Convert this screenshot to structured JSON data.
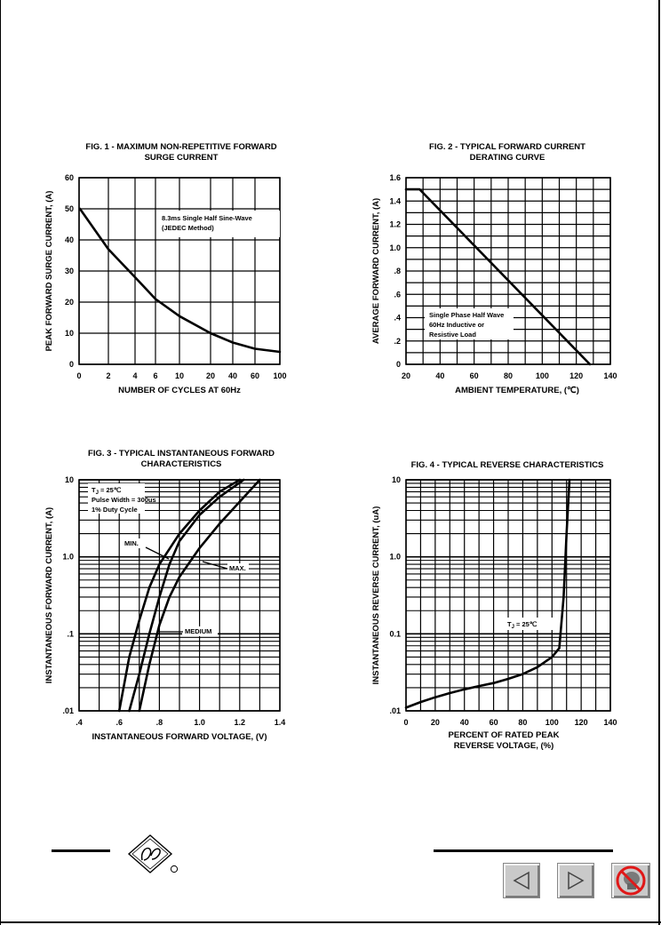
{
  "chart_data": [
    {
      "type": "line",
      "title": "FIG. 1 - MAXIMUM NON-REPETITIVE FORWARD SURGE CURRENT",
      "title_lines": [
        "FIG. 1 - MAXIMUM NON-REPETITIVE FORWARD",
        "SURGE CURRENT"
      ],
      "xlabel": "NUMBER OF CYCLES AT 60Hz",
      "ylabel": "PEAK FORWARD SURGE CURRENT, (A)",
      "x_ticks": [
        "0",
        "2",
        "4",
        "6",
        "10",
        "20",
        "40",
        "60",
        "100"
      ],
      "y_ticks": [
        "0",
        "10",
        "20",
        "30",
        "40",
        "50",
        "60"
      ],
      "ylim": [
        0,
        60
      ],
      "grid": true,
      "annotation_lines": [
        "8.3ms Single Half Sine-Wave",
        "(JEDEC Method)"
      ],
      "series": [
        {
          "x": [
            1,
            2,
            4,
            6,
            10,
            20,
            40,
            60,
            100
          ],
          "y": [
            50,
            37,
            28,
            21,
            15.5,
            10,
            7,
            5,
            4
          ]
        }
      ]
    },
    {
      "type": "line",
      "title": "FIG. 2 - TYPICAL FORWARD CURRENT DERATING CURVE",
      "title_lines": [
        "FIG. 2 - TYPICAL FORWARD CURRENT",
        "DERATING CURVE"
      ],
      "xlabel": "AMBIENT TEMPERATURE, (℃)",
      "ylabel": "AVERAGE FORWARD CURRENT, (A)",
      "x_ticks": [
        "20",
        "40",
        "60",
        "80",
        "100",
        "120",
        "140"
      ],
      "y_ticks": [
        "0",
        ".2",
        ".4",
        ".6",
        ".8",
        "1.0",
        "1.2",
        "1.4",
        "1.6"
      ],
      "xlim": [
        20,
        140
      ],
      "ylim": [
        0,
        1.6
      ],
      "grid": true,
      "annotation_lines": [
        "Single Phase Half Wave",
        "60Hz Inductive or",
        "Resistive Load"
      ],
      "series": [
        {
          "x": [
            20,
            28,
            128
          ],
          "y": [
            1.5,
            1.5,
            0
          ]
        }
      ]
    },
    {
      "type": "line",
      "title": "FIG. 3 - TYPICAL INSTANTANEOUS FORWARD CHARACTERISTICS",
      "title_lines": [
        "FIG. 3 - TYPICAL INSTANTANEOUS FORWARD",
        "CHARACTERISTICS"
      ],
      "xlabel": "INSTANTANEOUS FORWARD VOLTAGE, (V)",
      "ylabel": "INSTANTANEOUS FORWARD CURRENT, (A)",
      "x_ticks": [
        ".4",
        ".6",
        ".8",
        "1.0",
        "1.2",
        "1.4"
      ],
      "y_ticks": [
        ".01",
        ".1",
        "1.0",
        "10"
      ],
      "xlim": [
        0.4,
        1.4
      ],
      "ylim": [
        0.01,
        10
      ],
      "y_scale": "log",
      "grid": true,
      "conditions": [
        "T",
        "J",
        " = 25℃",
        "Pulse Width = 300us",
        "1% Duty Cycle"
      ],
      "series": [
        {
          "name": "MIN.",
          "x": [
            0.6,
            0.65,
            0.7,
            0.75,
            0.8,
            0.9,
            1.0,
            1.1,
            1.2
          ],
          "y": [
            0.01,
            0.05,
            0.15,
            0.4,
            0.8,
            2,
            4,
            7,
            10
          ]
        },
        {
          "name": "MEDIUM",
          "x": [
            0.65,
            0.7,
            0.75,
            0.8,
            0.85,
            0.9,
            1.0,
            1.1,
            1.22
          ],
          "y": [
            0.01,
            0.03,
            0.1,
            0.3,
            0.8,
            1.6,
            3.5,
            6,
            10
          ]
        },
        {
          "name": "MAX.",
          "x": [
            0.7,
            0.75,
            0.8,
            0.85,
            0.9,
            1.0,
            1.1,
            1.2,
            1.3
          ],
          "y": [
            0.01,
            0.04,
            0.13,
            0.3,
            0.55,
            1.3,
            2.7,
            5.2,
            10
          ]
        }
      ]
    },
    {
      "type": "line",
      "title": "FIG. 4 - TYPICAL REVERSE CHARACTERISTICS",
      "title_lines": [
        "FIG. 4 - TYPICAL REVERSE CHARACTERISTICS"
      ],
      "xlabel": "PERCENT OF RATED PEAK REVERSE VOLTAGE, (%)",
      "xlabel_lines": [
        "PERCENT OF RATED PEAK",
        "REVERSE VOLTAGE, (%)"
      ],
      "ylabel": "INSTANTANEOUS REVERSE CURRENT, (uA)",
      "x_ticks": [
        "0",
        "20",
        "40",
        "60",
        "80",
        "100",
        "120",
        "140"
      ],
      "y_ticks": [
        ".01",
        "0.1",
        "1.0",
        "10"
      ],
      "xlim": [
        0,
        140
      ],
      "ylim": [
        0.01,
        10
      ],
      "y_scale": "log",
      "grid": true,
      "conditions": [
        "T",
        "J",
        " = 25℃"
      ],
      "series": [
        {
          "x": [
            0,
            10,
            20,
            30,
            40,
            50,
            60,
            70,
            80,
            90,
            100,
            105,
            108,
            110,
            112
          ],
          "y": [
            0.011,
            0.013,
            0.015,
            0.017,
            0.019,
            0.021,
            0.023,
            0.026,
            0.03,
            0.037,
            0.05,
            0.065,
            0.3,
            2,
            10
          ]
        }
      ]
    }
  ],
  "nav": {
    "prev_icon": "left-triangle-icon",
    "next_icon": "right-triangle-icon",
    "exit_icon": "no-entry-icon"
  }
}
